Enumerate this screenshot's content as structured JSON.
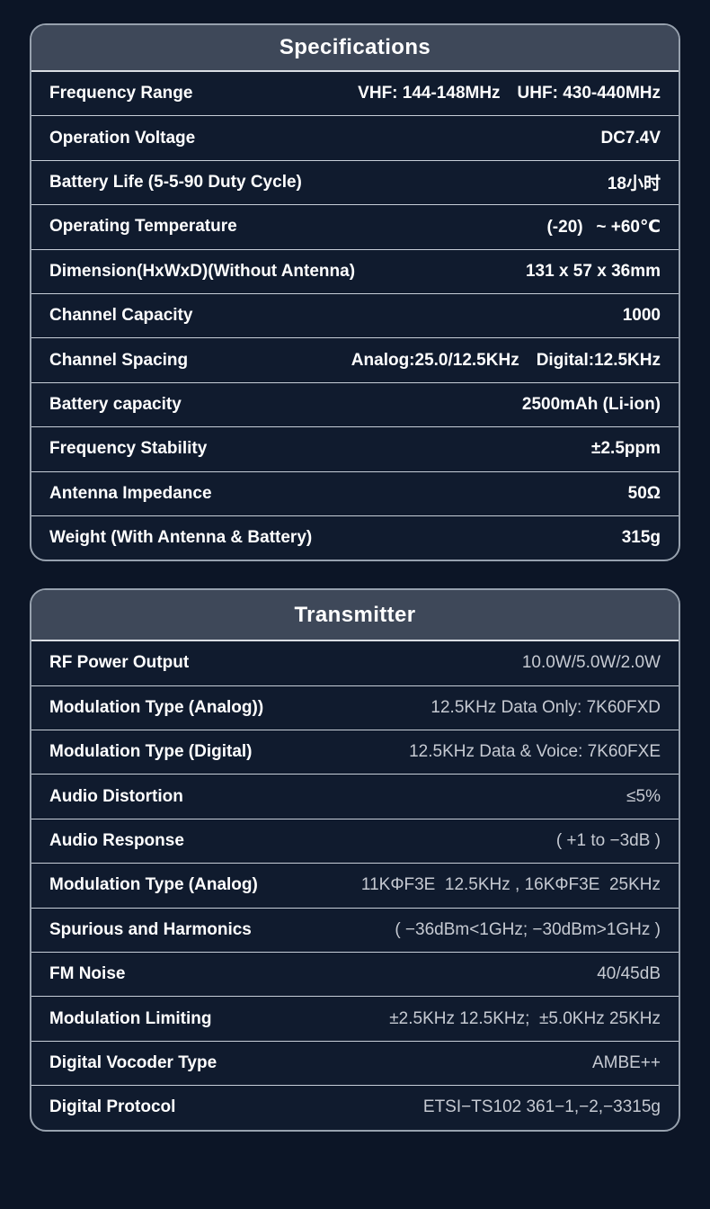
{
  "colors": {
    "page_background": "#0C1526",
    "card_background": "#101B2E",
    "header_background": "#3E4859",
    "card_border": "#97A1AE",
    "row_divider": "#C7CED8",
    "label_text": "#FFFFFF",
    "specs_value_text": "#FFFFFF",
    "tx_value_text": "#C6CAD2"
  },
  "specifications_table": {
    "title": "Specifications",
    "rows": [
      {
        "label": "Frequency Range",
        "value": "VHF: 144-148MHz UHF: 430-440MHz"
      },
      {
        "label": "Operation Voltage",
        "value": "DC7.4V"
      },
      {
        "label": "Battery Life (5-5-90 Duty Cycle)",
        "value": "18小时"
      },
      {
        "label": "Operating Temperature",
        "value": "(-20)  ~ +60℃"
      },
      {
        "label": "Dimension(HxWxD)(Without Antenna)",
        "value": "131 x 57 x 36mm"
      },
      {
        "label": "Channel Capacity",
        "value": "1000"
      },
      {
        "label": "Channel Spacing",
        "value": "Analog:25.0/12.5KHz Digital:12.5KHz"
      },
      {
        "label": "Battery capacity",
        "value": "2500mAh (Li-ion)"
      },
      {
        "label": "Frequency Stability",
        "value": "±2.5ppm"
      },
      {
        "label": "Antenna Impedance",
        "value": "50Ω"
      },
      {
        "label": "Weight (With Antenna & Battery)",
        "value": "315g"
      }
    ]
  },
  "transmitter_table": {
    "title": "Transmitter",
    "rows": [
      {
        "label": "RF Power Output",
        "value": "10.0W/5.0W/2.0W"
      },
      {
        "label": "Modulation Type (Analog))",
        "value": "12.5KHz Data Only: 7K60FXD"
      },
      {
        "label": "Modulation Type (Digital)",
        "value": "12.5KHz Data & Voice: 7K60FXE"
      },
      {
        "label": "Audio Distortion",
        "value": "≤5%"
      },
      {
        "label": "Audio Response",
        "value": "( +1 to −3dB )"
      },
      {
        "label": "Modulation Type (Analog)",
        "value": "11KΦF3E  12.5KHz , 16KΦF3E  25KHz"
      },
      {
        "label": "Spurious and Harmonics",
        "value": "( −36dBm<1GHz; −30dBm>1GHz )"
      },
      {
        "label": "FM Noise",
        "value": "40/45dB"
      },
      {
        "label": "Modulation Limiting",
        "value": "±2.5KHz 12.5KHz;  ±5.0KHz 25KHz"
      },
      {
        "label": "Digital Vocoder Type",
        "value": "AMBE++"
      },
      {
        "label": "Digital Protocol",
        "value": "ETSI−TS102 361−1,−2,−3315g"
      }
    ]
  }
}
